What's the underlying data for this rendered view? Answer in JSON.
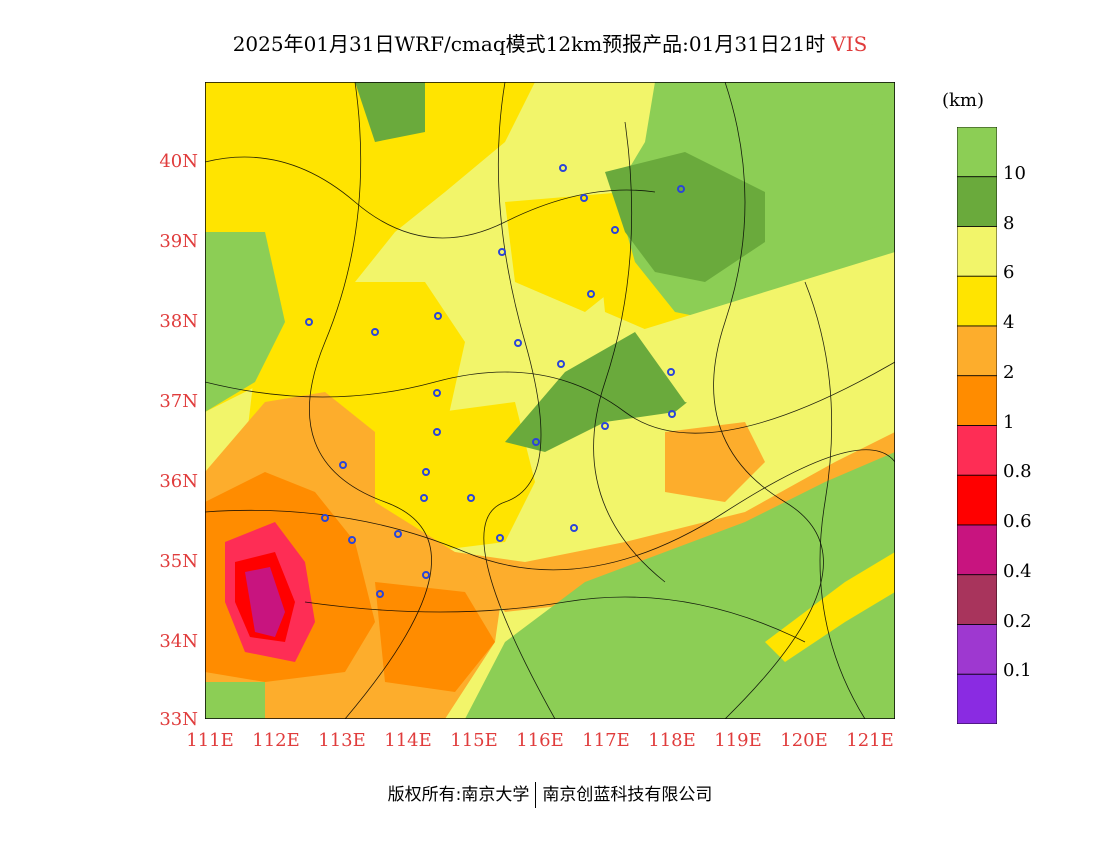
{
  "title": {
    "main": "2025年01月31日WRF/cmaq模式12km预报产品:01月31日21时",
    "variable": "VIS"
  },
  "legend": {
    "unit": "(km)",
    "bins": [
      {
        "label": "10",
        "color": "#8cce55"
      },
      {
        "label": "8",
        "color": "#6aaa3c"
      },
      {
        "label": "6",
        "color": "#f2f56a"
      },
      {
        "label": "4",
        "color": "#ffe400"
      },
      {
        "label": "2",
        "color": "#fdad2c"
      },
      {
        "label": "1",
        "color": "#ff8c00"
      },
      {
        "label": "0.8",
        "color": "#fe2d55"
      },
      {
        "label": "0.6",
        "color": "#ff0000"
      },
      {
        "label": "0.4",
        "color": "#c8147f"
      },
      {
        "label": "0.2",
        "color": "#a8345c"
      },
      {
        "label": "0.1",
        "color": "#9e38d0"
      },
      {
        "label": "",
        "color": "#8a2be2"
      }
    ]
  },
  "axes": {
    "lat_labels": [
      "40N",
      "39N",
      "38N",
      "37N",
      "36N",
      "35N",
      "34N",
      "33N"
    ],
    "lon_labels": [
      "111E",
      "112E",
      "113E",
      "114E",
      "115E",
      "116E",
      "117E",
      "118E",
      "119E",
      "120E",
      "121E"
    ]
  },
  "copyright": {
    "left": "版权所有:南京大学",
    "right": "南京创蓝科技有限公司"
  },
  "colors": {
    "accent_red": "#e03c3c",
    "stations": "#2b45d8"
  }
}
